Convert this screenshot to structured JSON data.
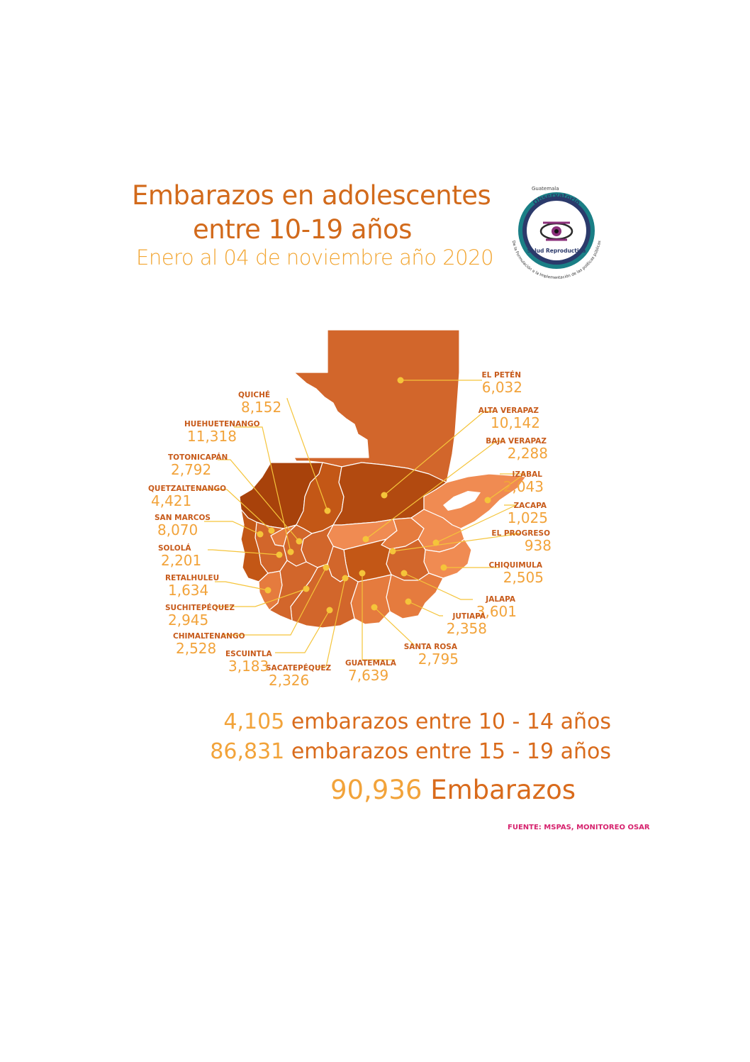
{
  "header": {
    "title_line1": "Embarazos en adolescentes",
    "title_line2": "entre 10-19 años",
    "subtitle": "Enero al 04 de noviembre año 2020"
  },
  "logo": {
    "top_text": "Guatemala",
    "name_line1": "Observatorio",
    "name_line2": "Salud Reproductiva",
    "ring_text": "De la Formulación a la Implementación de las políticas públicas",
    "icon": "eye-icon"
  },
  "departments": [
    {
      "name": "EL PETÉN",
      "value": "6,032"
    },
    {
      "name": "ALTA VERAPAZ",
      "value": "10,142"
    },
    {
      "name": "BAJA VERAPAZ",
      "value": "2,288"
    },
    {
      "name": "IZABAL",
      "value": "2,043"
    },
    {
      "name": "ZACAPA",
      "value": "1,025"
    },
    {
      "name": "EL PROGRESO",
      "value": "938"
    },
    {
      "name": "CHIQUIMULA",
      "value": "2,505"
    },
    {
      "name": "JALAPA",
      "value": "3,601"
    },
    {
      "name": "JUTIAPA",
      "value": "2,358"
    },
    {
      "name": "SANTA ROSA",
      "value": "2,795"
    },
    {
      "name": "GUATEMALA",
      "value": "7,639"
    },
    {
      "name": "SACATEPÉQUEZ",
      "value": "2,326"
    },
    {
      "name": "ESCUINTLA",
      "value": "3,183"
    },
    {
      "name": "CHIMALTENANGO",
      "value": "2,528"
    },
    {
      "name": "SUCHITEPÉQUEZ",
      "value": "2,945"
    },
    {
      "name": "RETALHULEU",
      "value": "1,634"
    },
    {
      "name": "SOLOLÁ",
      "value": "2,201"
    },
    {
      "name": "SAN MARCOS",
      "value": "8,070"
    },
    {
      "name": "QUETZALTENANGO",
      "value": "4,421"
    },
    {
      "name": "TOTONICAPÁN",
      "value": "2,792"
    },
    {
      "name": "HUEHUETENANGO",
      "value": "11,318"
    },
    {
      "name": "QUICHÉ",
      "value": "8,152"
    }
  ],
  "totals": {
    "age_10_14": {
      "number": "4,105",
      "text": "embarazos entre 10 - 14 años"
    },
    "age_15_19": {
      "number": "86,831",
      "text": "embarazos entre 15 - 19 años"
    },
    "total": {
      "number": "90,936",
      "text": "Embarazos"
    }
  },
  "source": "FUENTE: MSPAS, MONITOREO OSAR",
  "colors": {
    "title": "#d26a1b",
    "subtitle": "#f2a531",
    "value": "#f2a33a",
    "label": "#c75a1a",
    "leader_line": "#f5c43a",
    "source": "#d6236e",
    "shade_darkest": "#a8420b",
    "shade_dark": "#c35716",
    "shade_mid": "#d2662b",
    "shade_light": "#e57b3e",
    "shade_lighter": "#f08b52"
  }
}
